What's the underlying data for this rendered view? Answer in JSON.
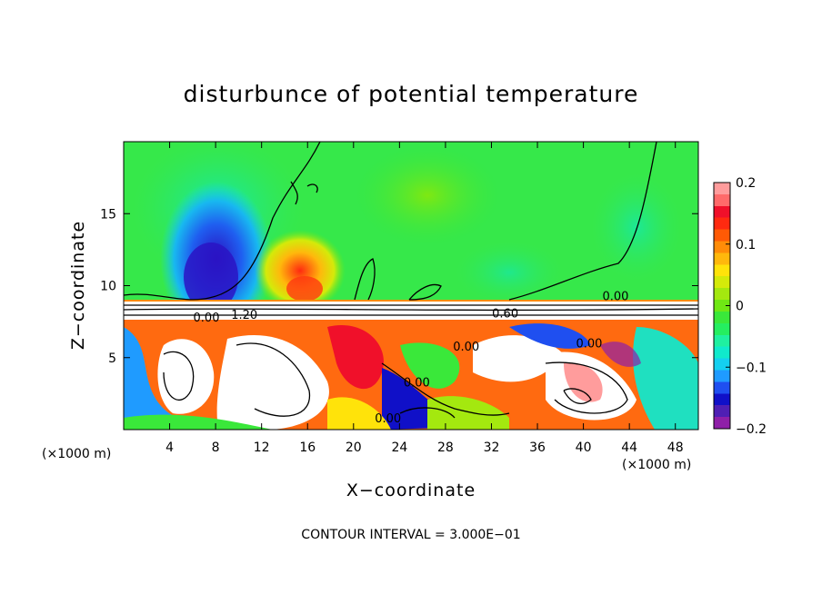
{
  "chart_data": {
    "type": "heatmap",
    "title": "disturbunce of potential temperature",
    "xlabel": "X−coordinate",
    "ylabel": "Z−coordinate",
    "x_unit": "(×1000 m)",
    "y_unit": "(×1000 m)",
    "xlim": [
      0,
      50
    ],
    "ylim": [
      0,
      20
    ],
    "x_ticks": [
      4,
      8,
      12,
      16,
      20,
      24,
      28,
      32,
      36,
      40,
      44,
      48
    ],
    "y_ticks": [
      5,
      10,
      15
    ],
    "colorbar": {
      "min": -0.2,
      "max": 0.2,
      "ticks": [
        {
          "value": 0.2,
          "label": "0.2"
        },
        {
          "value": 0.1,
          "label": "0.1"
        },
        {
          "value": 0,
          "label": "0"
        },
        {
          "value": -0.1,
          "label": "−0.1"
        },
        {
          "value": -0.2,
          "label": "−0.2"
        }
      ],
      "colors": [
        "#8f1fa8",
        "#4f1fb4",
        "#1010c8",
        "#1f4ff0",
        "#1f9bff",
        "#14d0f0",
        "#10eacc",
        "#1ff0a0",
        "#25ee60",
        "#3ae83a",
        "#6fe814",
        "#a4e80f",
        "#d4ea0a",
        "#ffe30a",
        "#ffb80c",
        "#ff8c08",
        "#ff5a05",
        "#ff2a10",
        "#f0102a",
        "#ff6a6a",
        "#ff9c9c"
      ]
    },
    "contour_labels": [
      {
        "text": "0.00",
        "x": 42.8,
        "z": 9.0
      },
      {
        "text": "1.20",
        "x": 10.5,
        "z": 7.7
      },
      {
        "text": "0.00",
        "x": 7.2,
        "z": 7.5
      },
      {
        "text": "0.60",
        "x": 33.2,
        "z": 7.8
      },
      {
        "text": "0.00",
        "x": 29.8,
        "z": 5.5
      },
      {
        "text": "0.00",
        "x": 40.5,
        "z": 5.7
      },
      {
        "text": "0.00",
        "x": 25.5,
        "z": 3.0
      },
      {
        "text": "0.00",
        "x": 23.0,
        "z": 0.5
      }
    ],
    "contour_interval_label": "CONTOUR INTERVAL = 3.000E−01"
  }
}
